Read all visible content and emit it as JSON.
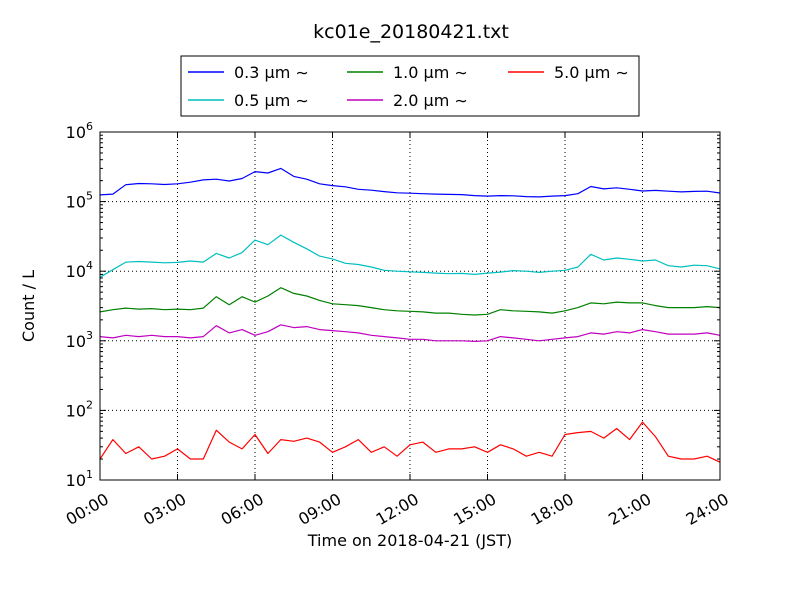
{
  "chart_data": {
    "type": "line",
    "title": "kc01e_20180421.txt",
    "xlabel": "Time on 2018-04-21 (JST)",
    "ylabel": "Count / L",
    "yscale": "log",
    "ylim": [
      10,
      1000000
    ],
    "xlim": [
      "00:00",
      "24:00"
    ],
    "x_ticks": [
      "00:00",
      "03:00",
      "06:00",
      "09:00",
      "12:00",
      "15:00",
      "18:00",
      "21:00",
      "24:00"
    ],
    "y_ticks": [
      {
        "base": "10",
        "exp": "1"
      },
      {
        "base": "10",
        "exp": "2"
      },
      {
        "base": "10",
        "exp": "3"
      },
      {
        "base": "10",
        "exp": "4"
      },
      {
        "base": "10",
        "exp": "5"
      },
      {
        "base": "10",
        "exp": "6"
      }
    ],
    "grid": true,
    "legend_position": "top-center",
    "x_hours": [
      0,
      0.5,
      1,
      1.5,
      2,
      2.5,
      3,
      3.5,
      4,
      4.5,
      5,
      5.5,
      6,
      6.5,
      7,
      7.5,
      8,
      8.5,
      9,
      9.5,
      10,
      10.5,
      11,
      11.5,
      12,
      12.5,
      13,
      13.5,
      14,
      14.5,
      15,
      15.5,
      16,
      16.5,
      17,
      17.5,
      18,
      18.5,
      19,
      19.5,
      20,
      20.5,
      21,
      21.5,
      22,
      22.5,
      23,
      23.5,
      24
    ],
    "series": [
      {
        "name": "0.3 μm ∼",
        "color": "#0000ff",
        "values": [
          125000,
          128000,
          175000,
          182000,
          180000,
          176000,
          180000,
          190000,
          205000,
          210000,
          198000,
          215000,
          270000,
          258000,
          300000,
          230000,
          210000,
          180000,
          170000,
          163000,
          150000,
          146000,
          139000,
          134000,
          132000,
          130000,
          128000,
          127000,
          126000,
          122000,
          120000,
          122000,
          121000,
          118000,
          117000,
          120000,
          122000,
          130000,
          165000,
          152000,
          158000,
          150000,
          142000,
          145000,
          141000,
          138000,
          140000,
          141000,
          133000
        ]
      },
      {
        "name": "0.5 μm ∼",
        "color": "#00bfbf",
        "values": [
          8200,
          10500,
          13500,
          13800,
          13500,
          13200,
          13400,
          14000,
          13500,
          18000,
          15500,
          18500,
          28000,
          24000,
          33000,
          26000,
          21000,
          16500,
          15000,
          13000,
          12500,
          11500,
          10300,
          10000,
          9800,
          9600,
          9400,
          9200,
          9300,
          9000,
          9400,
          9700,
          10200,
          10000,
          9600,
          10000,
          10300,
          11500,
          17500,
          14500,
          15500,
          14800,
          14000,
          14500,
          12000,
          11500,
          12200,
          12000,
          10800
        ]
      },
      {
        "name": "1.0 μm ∼",
        "color": "#008000",
        "values": [
          2600,
          2800,
          2950,
          2850,
          2900,
          2800,
          2850,
          2800,
          2950,
          4300,
          3300,
          4300,
          3600,
          4400,
          5800,
          4800,
          4400,
          3800,
          3400,
          3300,
          3200,
          3000,
          2800,
          2700,
          2650,
          2600,
          2500,
          2500,
          2400,
          2350,
          2400,
          2800,
          2700,
          2650,
          2600,
          2500,
          2700,
          3000,
          3500,
          3400,
          3600,
          3500,
          3500,
          3200,
          3000,
          3000,
          3000,
          3100,
          3000
        ]
      },
      {
        "name": "2.0 μm ∼",
        "color": "#bf00bf",
        "values": [
          1150,
          1100,
          1200,
          1150,
          1200,
          1150,
          1150,
          1100,
          1150,
          1650,
          1300,
          1450,
          1200,
          1350,
          1700,
          1550,
          1600,
          1450,
          1400,
          1350,
          1300,
          1200,
          1150,
          1100,
          1050,
          1050,
          1000,
          1000,
          1000,
          980,
          1000,
          1150,
          1100,
          1050,
          1000,
          1050,
          1100,
          1150,
          1300,
          1250,
          1350,
          1300,
          1450,
          1350,
          1250,
          1250,
          1250,
          1300,
          1200
        ]
      },
      {
        "name": "5.0 μm ∼",
        "color": "#ff0000",
        "values": [
          20,
          38,
          24,
          30,
          20,
          22,
          28,
          20,
          20,
          52,
          35,
          28,
          45,
          24,
          38,
          36,
          40,
          35,
          25,
          30,
          38,
          25,
          30,
          22,
          32,
          35,
          25,
          28,
          28,
          30,
          25,
          32,
          28,
          22,
          25,
          22,
          45,
          48,
          50,
          40,
          55,
          38,
          68,
          42,
          22,
          20,
          20,
          22,
          18
        ]
      }
    ]
  }
}
